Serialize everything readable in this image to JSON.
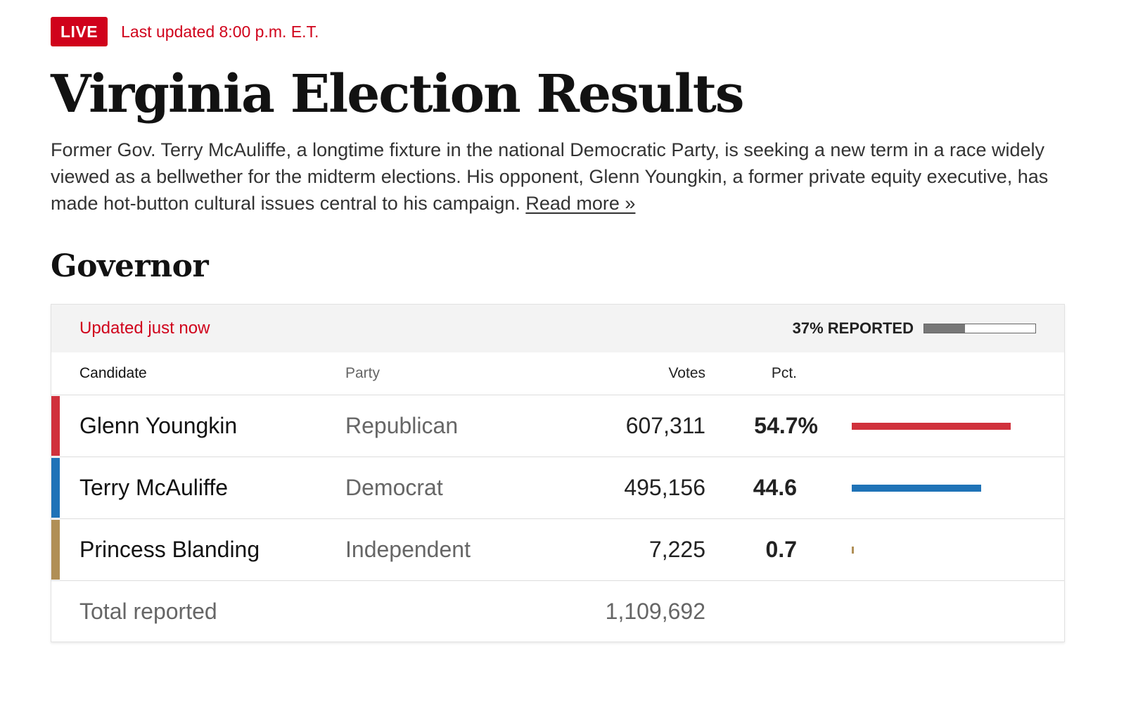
{
  "header": {
    "live_label": "LIVE",
    "last_updated": "Last updated 8:00 p.m. E.T."
  },
  "page_title": "Virginia Election Results",
  "intro": {
    "text": "Former Gov. Terry McAuliffe, a longtime fixture in the national Democratic Party, is seeking a new term in a race widely viewed as a bellwether for the midterm elections. His opponent, Glenn Youngkin, a former private equity executive, has made hot-button cultural issues central to his campaign. ",
    "read_more": "Read more »"
  },
  "race": {
    "title": "Governor",
    "updated": "Updated just now",
    "reported_label": "37% REPORTED",
    "reported_fraction": 0.37,
    "columns": {
      "candidate": "Candidate",
      "party": "Party",
      "votes": "Votes",
      "pct": "Pct."
    },
    "candidates": [
      {
        "name": "Glenn Youngkin",
        "party": "Republican",
        "votes": "607,311",
        "pct_label": "54.7%",
        "pct": 54.7,
        "color": "#d0313c"
      },
      {
        "name": "Terry McAuliffe",
        "party": "Democrat",
        "votes": "495,156",
        "pct_label": "44.6",
        "pct": 44.6,
        "color": "#1f73b7"
      },
      {
        "name": "Princess Blanding",
        "party": "Independent",
        "votes": "7,225",
        "pct_label": "0.7",
        "pct": 0.7,
        "color": "#b08f56"
      }
    ],
    "total_label": "Total reported",
    "total_votes": "1,109,692"
  }
}
